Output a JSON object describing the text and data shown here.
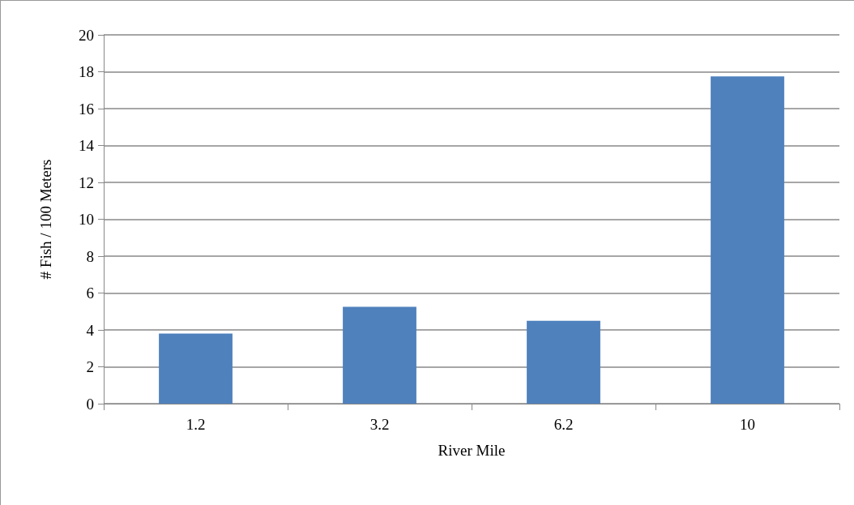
{
  "chart_data": {
    "type": "bar",
    "xlabel": "River Mile",
    "ylabel": "# Fish / 100 Meters",
    "categories": [
      "1.2",
      "3.2",
      "6.2",
      "10"
    ],
    "values": [
      3.8,
      5.25,
      4.5,
      17.75
    ],
    "color": "#4f81bd",
    "ylim": [
      0,
      20
    ],
    "yticks": [
      0,
      2,
      4,
      6,
      8,
      10,
      12,
      14,
      16,
      18,
      20
    ],
    "grid": "y"
  }
}
